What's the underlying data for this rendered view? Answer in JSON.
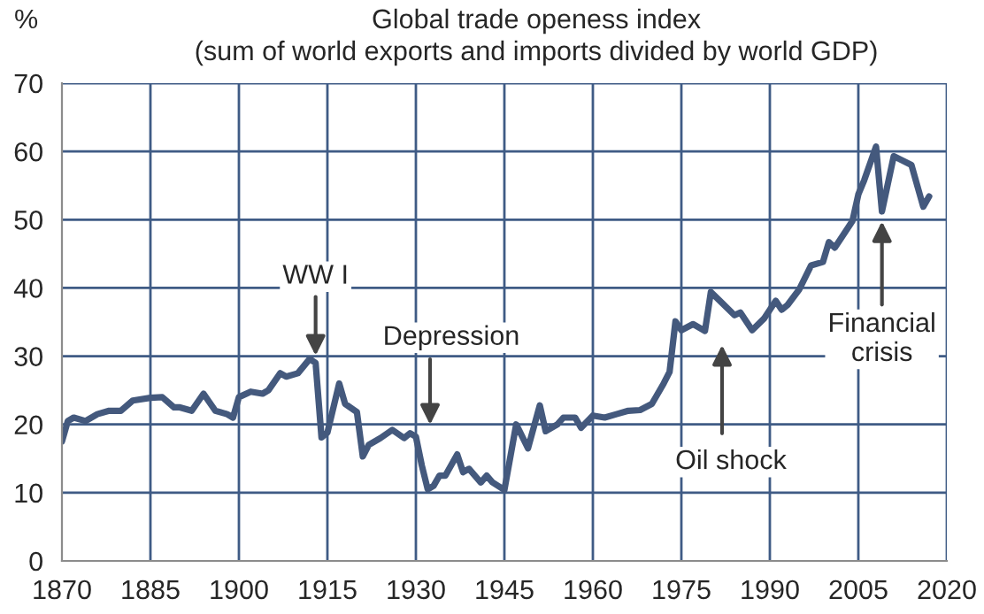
{
  "chart_data": {
    "type": "line",
    "title": "Global trade openess index",
    "subtitle": "(sum of world exports and imports divided by world GDP)",
    "ylabel": "%",
    "x": [
      1870,
      1871,
      1872,
      1874,
      1876,
      1878,
      1880,
      1882,
      1885,
      1887,
      1889,
      1890,
      1892,
      1894,
      1896,
      1898,
      1899,
      1900,
      1902,
      1904,
      1905,
      1907,
      1908,
      1910,
      1912,
      1913,
      1914,
      1915,
      1917,
      1918,
      1920,
      1921,
      1922,
      1924,
      1926,
      1928,
      1929,
      1930,
      1931,
      1932,
      1933,
      1934,
      1935,
      1937,
      1938,
      1939,
      1941,
      1942,
      1943,
      1945,
      1947,
      1949,
      1951,
      1952,
      1954,
      1955,
      1957,
      1958,
      1960,
      1962,
      1964,
      1966,
      1968,
      1970,
      1972,
      1973,
      1974,
      1975,
      1977,
      1979,
      1980,
      1982,
      1984,
      1985,
      1987,
      1989,
      1991,
      1992,
      1993,
      1995,
      1997,
      1999,
      2000,
      2001,
      2002,
      2004,
      2005,
      2006,
      2008,
      2009,
      2011,
      2014,
      2016,
      2017
    ],
    "series": [
      {
        "color": "#44597d",
        "values": [
          17.5,
          20.5,
          21,
          20.5,
          21.5,
          22,
          22,
          23.5,
          23.9,
          24,
          22.5,
          22.5,
          22,
          24.5,
          22,
          21.5,
          21,
          24,
          24.8,
          24.5,
          25,
          27.5,
          27,
          27.5,
          29.6,
          29,
          18.1,
          18.8,
          26,
          23,
          21.8,
          15.3,
          17,
          18,
          19.2,
          18,
          18.7,
          18.2,
          14,
          10.5,
          11,
          12.5,
          12.5,
          15.6,
          13,
          13.5,
          11.5,
          12.5,
          11.5,
          10.4,
          20,
          16.5,
          22.8,
          19,
          20,
          21,
          21,
          19.5,
          21.3,
          21,
          21.5,
          22,
          22.1,
          23,
          26,
          27.7,
          35.1,
          33.8,
          34.7,
          33.7,
          39.4,
          37.7,
          36,
          36.4,
          33.8,
          35.5,
          38.1,
          36.8,
          37.5,
          39.8,
          43.3,
          43.8,
          46.7,
          45.9,
          47.2,
          49.8,
          53.7,
          55.8,
          60.7,
          51.2,
          59.3,
          58,
          51.9,
          53.4
        ]
      }
    ],
    "xlim": [
      1870,
      2020
    ],
    "xticks": [
      1870,
      1885,
      1900,
      1915,
      1930,
      1945,
      1960,
      1975,
      1990,
      2005,
      2020
    ],
    "ylim": [
      0,
      70
    ],
    "yticks": [
      0,
      10,
      20,
      30,
      40,
      50,
      60,
      70
    ],
    "grid": true,
    "annotations": [
      {
        "text": "WW I",
        "x": 1913,
        "y": 29
      },
      "Depression",
      "Oil shock",
      {
        "text": "Financial\ncrisis",
        "x": 2009,
        "y": 51.2
      }
    ]
  }
}
